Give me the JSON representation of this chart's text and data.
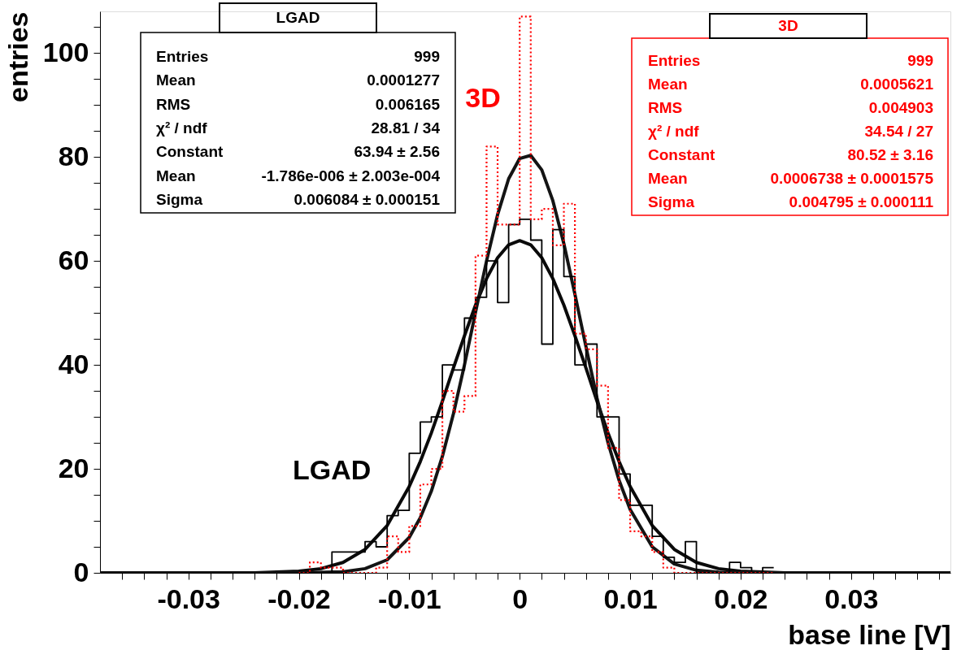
{
  "chart_data": {
    "type": "histogram",
    "xlabel": "base line [V]",
    "ylabel": "entries",
    "bins": [
      -0.02,
      -0.019,
      -0.018,
      -0.017,
      -0.016,
      -0.015,
      -0.014,
      -0.013,
      -0.012,
      -0.011,
      -0.01,
      -0.009,
      -0.008,
      -0.007,
      -0.006,
      -0.005,
      -0.004,
      -0.003,
      -0.002,
      -0.001,
      0,
      0.001,
      0.002,
      0.003,
      0.004,
      0.005,
      0.006,
      0.007,
      0.008,
      0.009,
      0.01,
      0.011,
      0.012,
      0.013,
      0.014,
      0.015,
      0.016,
      0.017,
      0.018,
      0.019,
      0.02,
      0.021,
      0.022,
      0.023
    ],
    "series": [
      {
        "name": "LGAD",
        "type": "histogram",
        "color": "#000000",
        "line_style": "solid",
        "values": [
          0,
          0,
          0,
          4,
          4,
          4,
          6,
          5,
          11,
          12,
          23,
          29,
          30,
          40,
          39,
          49,
          53,
          60,
          52,
          67,
          68,
          64,
          44,
          66,
          57,
          40,
          44,
          30,
          30,
          19,
          13,
          13,
          7,
          3,
          2,
          6,
          0,
          0,
          0,
          2,
          1,
          0,
          1
        ]
      },
      {
        "name": "3D",
        "type": "histogram",
        "color": "#ff0000",
        "line_style": "dotted",
        "values": [
          0,
          2,
          1,
          1,
          0,
          0,
          0,
          1,
          7,
          4,
          9,
          17,
          20,
          35,
          31,
          34,
          61,
          82,
          67,
          67,
          107,
          68,
          70,
          63,
          71,
          46,
          43,
          36,
          24,
          14,
          8,
          7,
          4,
          1,
          0,
          0,
          0,
          0,
          0,
          0,
          0,
          0,
          0
        ]
      },
      {
        "type": "line",
        "color": "#0a0a0a",
        "line_style": "solid",
        "x": [
          -0.038,
          -0.024,
          -0.02,
          -0.018,
          -0.016,
          -0.014,
          -0.012,
          -0.01,
          -0.009,
          -0.008,
          -0.007,
          -0.006,
          -0.005,
          -0.004,
          -0.003,
          -0.002,
          -0.001,
          0,
          0.001,
          0.002,
          0.003,
          0.004,
          0.005,
          0.006,
          0.007,
          0.008,
          0.009,
          0.01,
          0.012,
          0.014,
          0.016,
          0.018,
          0.02,
          0.024,
          0.039
        ],
        "values": [
          0,
          0,
          0.3,
          0.8,
          2.0,
          4.5,
          9.1,
          16.6,
          21.4,
          26.9,
          33.0,
          39.4,
          45.6,
          51.5,
          56.6,
          60.6,
          63.1,
          63.9,
          63.1,
          60.6,
          56.6,
          51.5,
          45.6,
          39.4,
          33.0,
          26.9,
          21.4,
          16.6,
          9.1,
          4.5,
          2.0,
          0.8,
          0.3,
          0,
          0
        ]
      },
      {
        "type": "line",
        "color": "#141414",
        "line_style": "solid",
        "x": [
          -0.038,
          -0.02,
          -0.016,
          -0.014,
          -0.012,
          -0.01,
          -0.009,
          -0.008,
          -0.007,
          -0.006,
          -0.005,
          -0.004,
          -0.003,
          -0.002,
          -0.001,
          0,
          0.001,
          0.002,
          0.003,
          0.004,
          0.005,
          0.006,
          0.007,
          0.008,
          0.009,
          0.01,
          0.012,
          0.014,
          0.016,
          0.018,
          0.02,
          0.039
        ],
        "values": [
          0,
          0,
          0.2,
          0.8,
          2.5,
          6.8,
          10.6,
          15.7,
          22.4,
          30.6,
          40.0,
          50.1,
          60.0,
          68.9,
          75.8,
          79.7,
          80.3,
          77.5,
          71.6,
          63.3,
          53.6,
          43.5,
          33.6,
          25.0,
          17.8,
          12.2,
          5.0,
          1.7,
          0.5,
          0.1,
          0,
          0
        ]
      }
    ],
    "xlim": [
      -0.038,
      0.039
    ],
    "xticks": [
      {
        "value": -0.036,
        "label": null
      },
      {
        "value": -0.034,
        "label": null
      },
      {
        "value": -0.032,
        "label": null
      },
      -0.03,
      {
        "value": -0.028,
        "label": null
      },
      {
        "value": -0.026,
        "label": null
      },
      {
        "value": -0.024,
        "label": null
      },
      {
        "value": -0.022,
        "label": null
      },
      -0.02,
      {
        "value": -0.018,
        "label": null
      },
      {
        "value": -0.016,
        "label": null
      },
      {
        "value": -0.014,
        "label": null
      },
      {
        "value": -0.012,
        "label": null
      },
      -0.01,
      {
        "value": -0.008,
        "label": null
      },
      {
        "value": -0.006,
        "label": null
      },
      {
        "value": -0.004,
        "label": null
      },
      {
        "value": -0.002,
        "label": null
      },
      0,
      {
        "value": 0.002,
        "label": null
      },
      {
        "value": 0.004,
        "label": null
      },
      {
        "value": 0.006,
        "label": null
      },
      {
        "value": 0.008,
        "label": null
      },
      0.01,
      {
        "value": 0.012,
        "label": null
      },
      {
        "value": 0.014,
        "label": null
      },
      {
        "value": 0.016,
        "label": null
      },
      {
        "value": 0.018,
        "label": null
      },
      0.02,
      {
        "value": 0.022,
        "label": null
      },
      {
        "value": 0.024,
        "label": null
      },
      {
        "value": 0.026,
        "label": null
      },
      {
        "value": 0.028,
        "label": null
      },
      0.03,
      {
        "value": 0.032,
        "label": null
      },
      {
        "value": 0.034,
        "label": null
      },
      {
        "value": 0.036,
        "label": null
      },
      {
        "value": 0.038,
        "label": null
      }
    ],
    "ylim": [
      0,
      108
    ],
    "yticks": [
      0,
      {
        "value": 5,
        "label": null
      },
      {
        "value": 10,
        "label": null
      },
      {
        "value": 15,
        "label": null
      },
      20,
      {
        "value": 25,
        "label": null
      },
      {
        "value": 30,
        "label": null
      },
      {
        "value": 35,
        "label": null
      },
      40,
      {
        "value": 45,
        "label": null
      },
      {
        "value": 50,
        "label": null
      },
      {
        "value": 55,
        "label": null
      },
      60,
      {
        "value": 65,
        "label": null
      },
      {
        "value": 70,
        "label": null
      },
      {
        "value": 75,
        "label": null
      },
      80,
      {
        "value": 85,
        "label": null
      },
      {
        "value": 90,
        "label": null
      },
      {
        "value": 95,
        "label": null
      },
      100,
      {
        "value": 105,
        "label": null
      }
    ],
    "grid": false,
    "annotations": [
      "LGAD",
      "Entries",
      "999",
      "Mean",
      "0.0001277",
      "RMS",
      "0.006165",
      "χ² / ndf",
      "28.81 / 34",
      "Constant",
      "63.94 ± 2.56",
      "Mean",
      "-1.786e-006 ± 2.003e-004",
      "Sigma",
      "0.006084 ± 0.000151",
      "3D",
      "Entries",
      "999",
      "Mean",
      "0.0005621",
      "RMS",
      "0.004903",
      "χ² / ndf",
      "34.54 / 27",
      "Constant",
      "80.52 ± 3.16",
      "Mean",
      "0.0006738 ± 0.0001575",
      "Sigma",
      "0.004795 ± 0.000111"
    ]
  }
}
